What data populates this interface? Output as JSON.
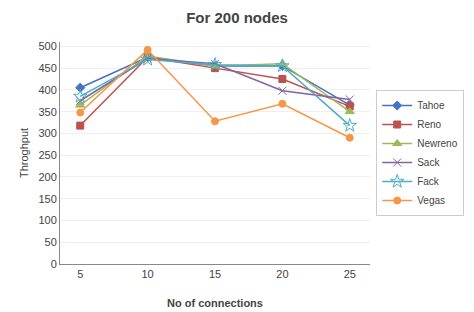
{
  "chart_data": {
    "type": "line",
    "title": "For 200 nodes",
    "x_label": "No of connections",
    "y_label": "Throghput",
    "x": [
      5,
      10,
      15,
      20,
      25
    ],
    "series": [
      {
        "name": "Tahoe",
        "color": "#4472C4",
        "marker": "diamond",
        "values": [
          405,
          475,
          455,
          455,
          365
        ]
      },
      {
        "name": "Reno",
        "color": "#C0504D",
        "marker": "square",
        "values": [
          318,
          475,
          450,
          425,
          362
        ]
      },
      {
        "name": "Newreno",
        "color": "#9BBB59",
        "marker": "triangle",
        "values": [
          365,
          478,
          455,
          460,
          350
        ]
      },
      {
        "name": "Sack",
        "color": "#8064A2",
        "marker": "x",
        "values": [
          375,
          472,
          460,
          398,
          378
        ]
      },
      {
        "name": "Fack",
        "color": "#4BACC6",
        "marker": "star",
        "values": [
          385,
          470,
          458,
          455,
          318
        ]
      },
      {
        "name": "Vegas",
        "color": "#F79646",
        "marker": "circle",
        "values": [
          348,
          492,
          328,
          368,
          290
        ]
      }
    ],
    "xlim": [
      3.5,
      26.5
    ],
    "xticks": [
      5,
      10,
      15,
      20,
      25
    ],
    "ylim": [
      0,
      510
    ],
    "yticks": [
      0,
      50,
      100,
      150,
      200,
      250,
      300,
      350,
      400,
      450,
      500
    ],
    "grid": true,
    "legend": "right"
  }
}
